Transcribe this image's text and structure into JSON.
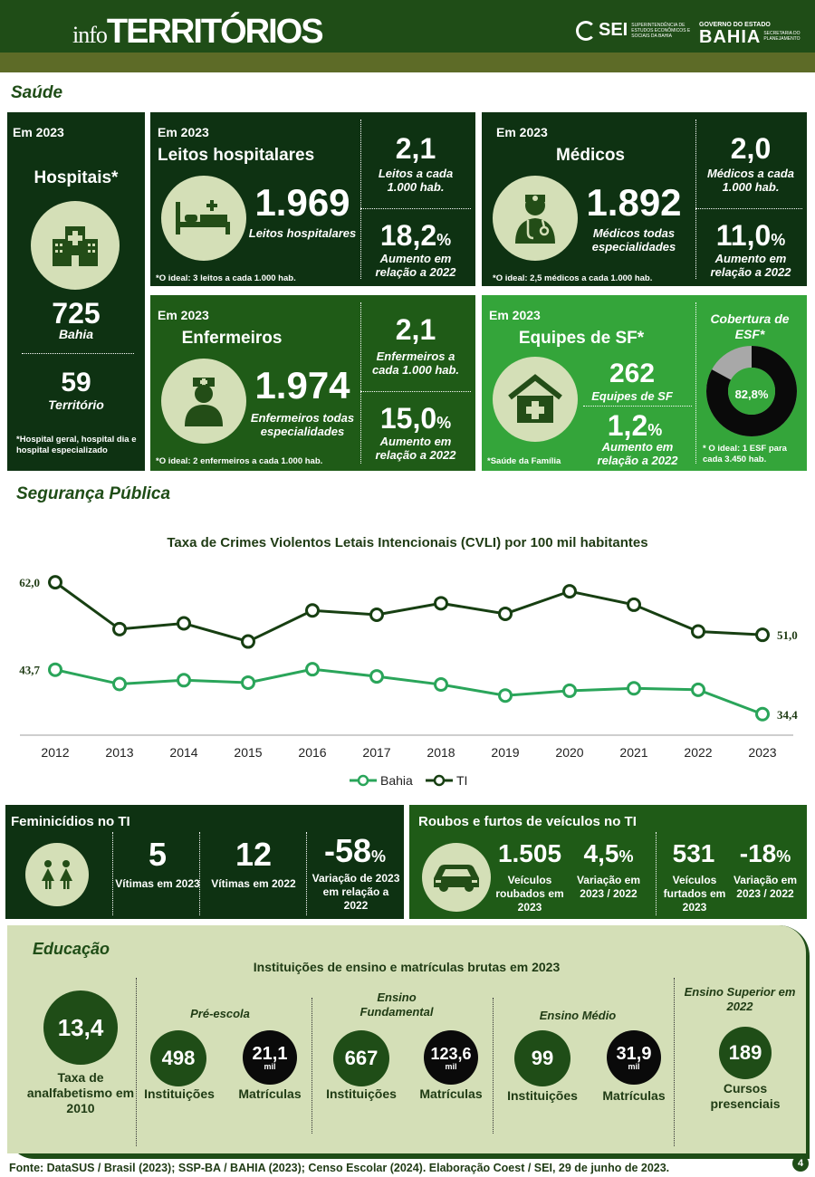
{
  "header": {
    "title_info": "info",
    "title_main": "TERRITÓRIOS",
    "sei_logo": "SEI",
    "sei_sub": "Superintendência de Estudos Econômicos e Sociais da Bahia",
    "gov_top": "GOVERNO DO ESTADO",
    "gov_big": "BAHIA",
    "gov_side": "SECRETARIA DO PLANEJAMENTO"
  },
  "saude": {
    "section": "Saúde",
    "hospitais": {
      "year": "Em 2023",
      "title": "Hospitais*",
      "bahia_value": "725",
      "bahia_label": "Bahia",
      "terr_value": "59",
      "terr_label": "Território",
      "note": "*Hospital geral, hospital dia e hospital especializado",
      "icon": "hospital-icon"
    },
    "leitos": {
      "year": "Em 2023",
      "title": "Leitos hospitalares",
      "value": "1.969",
      "value_label": "Leitos hospitalares",
      "rate": "2,1",
      "rate_label": "Leitos a cada 1.000 hab.",
      "growth": "18,2",
      "growth_unit": "%",
      "growth_label": "Aumento em relação a 2022",
      "note": "*O ideal: 3 leitos a cada 1.000 hab.",
      "icon": "bed-icon"
    },
    "medicos": {
      "year": "Em 2023",
      "title": "Médicos",
      "value": "1.892",
      "value_label": "Médicos todas especialidades",
      "rate": "2,0",
      "rate_label": "Médicos a cada 1.000 hab.",
      "growth": "11,0",
      "growth_unit": "%",
      "growth_label": "Aumento em relação a 2022",
      "note": "*O ideal: 2,5 médicos a cada 1.000 hab.",
      "icon": "doctor-icon"
    },
    "enfermeiros": {
      "year": "Em 2023",
      "title": "Enfermeiros",
      "value": "1.974",
      "value_label": "Enfermeiros todas especialidades",
      "rate": "2,1",
      "rate_label": "Enfermeiros a cada 1.000 hab.",
      "growth": "15,0",
      "growth_unit": "%",
      "growth_label": "Aumento em relação a 2022",
      "note": "*O ideal: 2 enfermeiros a cada 1.000 hab.",
      "icon": "nurse-icon"
    },
    "equipes": {
      "year": "Em 2023",
      "title": "Equipes de SF*",
      "value": "262",
      "value_label": "Equipes de SF",
      "growth": "1,2",
      "growth_unit": "%",
      "growth_label": "Aumento em relação a 2022",
      "note": "*Saúde da Família",
      "coverage_title": "Cobertura de ESF*",
      "coverage_value": "82,8%",
      "coverage_fraction": 0.828,
      "coverage_note": "* O ideal: 1 ESF para cada 3.450 hab.",
      "icon": "health-house-icon"
    }
  },
  "seguranca": {
    "section": "Segurança Pública",
    "chart_data": {
      "type": "line",
      "title": "Taxa de Crimes Violentos Letais Intencionais (CVLI) por 100 mil habitantes",
      "categories": [
        "2012",
        "2013",
        "2014",
        "2015",
        "2016",
        "2017",
        "2018",
        "2019",
        "2020",
        "2021",
        "2022",
        "2023"
      ],
      "series": [
        {
          "name": "Bahia",
          "values": [
            43.7,
            40.7,
            41.5,
            41.0,
            43.8,
            42.3,
            40.6,
            38.3,
            39.3,
            39.8,
            39.5,
            34.4
          ],
          "color": "#2aa55a"
        },
        {
          "name": "TI",
          "values": [
            62.0,
            52.2,
            53.4,
            49.6,
            56.1,
            55.2,
            57.6,
            55.4,
            60.1,
            57.3,
            51.7,
            51.0
          ],
          "color": "#173f12"
        }
      ],
      "data_labels": {
        "bahia_first": "43,7",
        "bahia_last": "34,4",
        "ti_first": "62,0",
        "ti_last": "51,0"
      },
      "ylim": [
        30,
        66
      ],
      "grid": false,
      "legend": "bottom"
    },
    "feminicidios": {
      "title": "Feminicídios no TI",
      "v2023": "5",
      "v2023_label": "Vítimas em 2023",
      "v2022": "12",
      "v2022_label": "Vítimas em 2022",
      "var": "-58",
      "var_unit": "%",
      "var_label": "Variação de 2023 em relação a 2022",
      "icon": "women-icon"
    },
    "veiculos": {
      "title": "Roubos e furtos de veículos no TI",
      "roubados": "1.505",
      "roubados_label": "Veículos roubados em 2023",
      "var_roubo": "4,5",
      "var_roubo_unit": "%",
      "var_roubo_label": "Variação em 2023 / 2022",
      "furtados": "531",
      "furtados_label": "Veículos furtados em 2023",
      "var_furto": "-18",
      "var_furto_unit": "%",
      "var_furto_label": "Variação em 2023 / 2022",
      "icon": "car-icon"
    }
  },
  "educacao": {
    "section": "Educação",
    "subtitle": "Instituições de ensino e matrículas brutas em 2023",
    "analfabetismo": {
      "value": "13,4",
      "label": "Taxa de analfabetismo em 2010"
    },
    "pre_escola": {
      "head": "Pré-escola",
      "inst": "498",
      "inst_label": "Instituições",
      "mat": "21,1",
      "mat_unit": "mil",
      "mat_label": "Matrículas"
    },
    "fundamental": {
      "head": "Ensino Fundamental",
      "inst": "667",
      "inst_label": "Instituições",
      "mat": "123,6",
      "mat_unit": "mil",
      "mat_label": "Matrículas"
    },
    "medio": {
      "head": "Ensino Médio",
      "inst": "99",
      "inst_label": "Instituições",
      "mat": "31,9",
      "mat_unit": "mil",
      "mat_label": "Matrículas"
    },
    "superior": {
      "head": "Ensino Superior em 2022",
      "value": "189",
      "label": "Cursos presenciais"
    }
  },
  "footer": {
    "source": "Fonte: DataSUS / Brasil (2023); SSP-BA / BAHIA (2023); Censo Escolar (2024). Elaboração Coest / SEI, 29 de junho de 2023.",
    "page": "4"
  }
}
